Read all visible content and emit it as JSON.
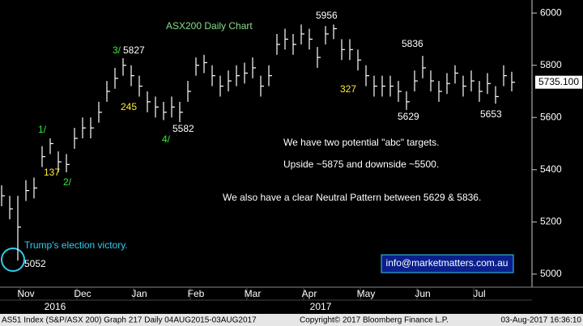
{
  "chart_data": {
    "type": "ohlc",
    "title": "ASX200 Daily Chart",
    "color": "#ffffff",
    "categories": [
      null,
      null,
      null,
      "Nov",
      null,
      null,
      null,
      null,
      null,
      null,
      "Dec",
      null,
      null,
      null,
      null,
      null,
      null,
      "Jan",
      null,
      null,
      null,
      null,
      null,
      null,
      "Feb",
      null,
      null,
      null,
      null,
      null,
      null,
      "Mar",
      null,
      null,
      null,
      null,
      null,
      null,
      "Apr",
      null,
      null,
      null,
      null,
      null,
      null,
      "May",
      null,
      null,
      null,
      null,
      null,
      null,
      "Jun",
      null,
      null,
      null,
      null,
      null,
      null,
      "Jul",
      null,
      null,
      null,
      null
    ],
    "year_labels": [
      "2016",
      "2017"
    ],
    "high": [
      5340,
      5300,
      5300,
      5360,
      5370,
      5490,
      5520,
      5470,
      5460,
      5560,
      5600,
      5600,
      5660,
      5740,
      5790,
      5827,
      5800,
      5760,
      5700,
      5680,
      5660,
      5680,
      5660,
      5740,
      5830,
      5840,
      5800,
      5760,
      5780,
      5800,
      5810,
      5830,
      5760,
      5800,
      5920,
      5940,
      5920,
      5956,
      5940,
      5870,
      5950,
      5956,
      5900,
      5900,
      5860,
      5800,
      5760,
      5760,
      5760,
      5740,
      5700,
      5780,
      5836,
      5780,
      5740,
      5770,
      5800,
      5760,
      5780,
      5740,
      5770,
      5720,
      5800,
      5775
    ],
    "low": [
      5260,
      5210,
      5052,
      5280,
      5290,
      5410,
      5460,
      5390,
      5390,
      5480,
      5520,
      5520,
      5580,
      5660,
      5710,
      5760,
      5720,
      5680,
      5620,
      5600,
      5590,
      5600,
      5582,
      5660,
      5760,
      5770,
      5720,
      5680,
      5700,
      5720,
      5730,
      5750,
      5680,
      5720,
      5840,
      5860,
      5840,
      5880,
      5860,
      5790,
      5880,
      5900,
      5820,
      5820,
      5780,
      5720,
      5680,
      5680,
      5680,
      5660,
      5629,
      5700,
      5750,
      5700,
      5660,
      5690,
      5730,
      5680,
      5700,
      5660,
      5690,
      5653,
      5720,
      5700
    ],
    "close": [
      5300,
      5250,
      5180,
      5320,
      5330,
      5450,
      5500,
      5430,
      5420,
      5520,
      5560,
      5560,
      5620,
      5700,
      5750,
      5800,
      5760,
      5720,
      5660,
      5640,
      5620,
      5640,
      5620,
      5700,
      5800,
      5810,
      5760,
      5720,
      5740,
      5760,
      5770,
      5790,
      5720,
      5760,
      5880,
      5900,
      5880,
      5920,
      5900,
      5830,
      5920,
      5940,
      5860,
      5860,
      5820,
      5760,
      5720,
      5720,
      5720,
      5700,
      5660,
      5740,
      5790,
      5740,
      5700,
      5730,
      5770,
      5720,
      5740,
      5700,
      5730,
      5680,
      5760,
      5735
    ],
    "ylim": [
      4950,
      6050
    ],
    "yticks": [
      5000,
      5200,
      5400,
      5600,
      5800,
      6000
    ],
    "last_price_label": "5735.100",
    "annotations": [
      {
        "text": "3/",
        "color": "#33ee33"
      },
      {
        "text": "5827",
        "color": "#ffffff"
      },
      {
        "text": "245",
        "color": "#ffee33"
      },
      {
        "text": "5582",
        "color": "#ffffff"
      },
      {
        "text": "4/",
        "color": "#33ee33"
      },
      {
        "text": "1/",
        "color": "#33ee33"
      },
      {
        "text": "137",
        "color": "#ffee33"
      },
      {
        "text": "2/",
        "color": "#33ee33"
      },
      {
        "text": "5956",
        "color": "#ffffff"
      },
      {
        "text": "5836",
        "color": "#ffffff"
      },
      {
        "text": "327",
        "color": "#ffee33"
      },
      {
        "text": "5629",
        "color": "#ffffff"
      },
      {
        "text": "5653",
        "color": "#ffffff"
      },
      {
        "text": "5052",
        "color": "#ffffff"
      },
      {
        "text": "Trump's election victory.",
        "color": "#33ccee"
      },
      {
        "text": "We have two potential \"abc\" targets.",
        "color": "#ffffff"
      },
      {
        "text": "Upside ~5875 and downside ~5500.",
        "color": "#ffffff"
      },
      {
        "text": "We also have a clear Neutral Pattern between 5629 & 5836.",
        "color": "#ffffff"
      }
    ],
    "contact": "info@marketmatters.com.au",
    "footer": {
      "left": "AS51 Index (S&P/ASX 200) Graph 217  Daily 04AUG2015-03AUG2017",
      "center": "Copyright© 2017 Bloomberg Finance L.P.",
      "right": "03-Aug-2017 16:36:10"
    }
  }
}
